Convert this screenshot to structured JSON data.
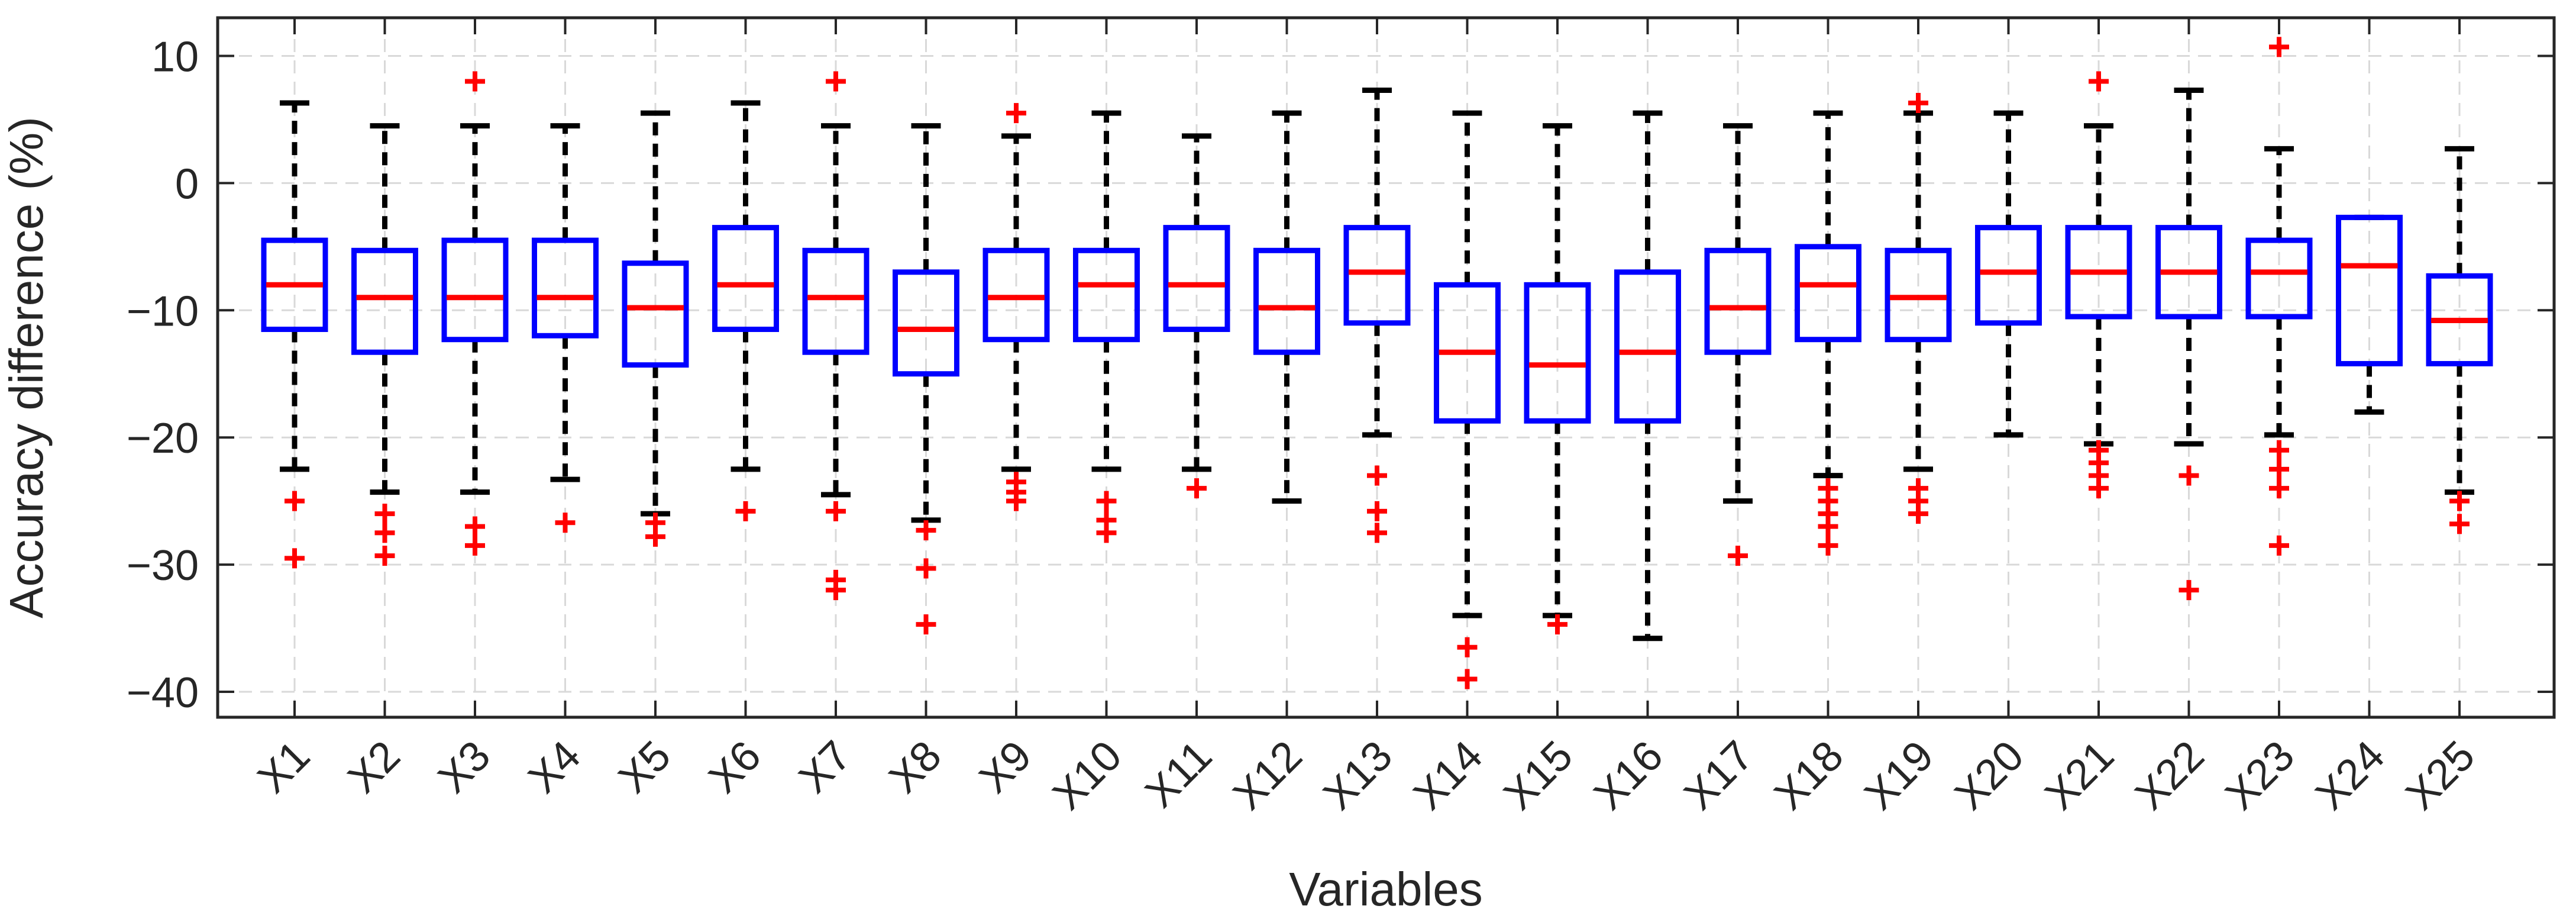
{
  "chart_data": {
    "type": "boxplot",
    "title": "",
    "xlabel": "Variables",
    "ylabel": "Accuracy difference (%)",
    "ylim": [
      -42,
      13
    ],
    "yticks": [
      10,
      0,
      -10,
      -20,
      -30,
      -40
    ],
    "grid": true,
    "colors": {
      "box": "#0000ff",
      "median": "#ff0000",
      "whisker": "#000000",
      "outlier": "#ff0000",
      "grid": "#d9d9d9",
      "axis": "#262626"
    },
    "boxes": [
      {
        "label": "X1",
        "q1": -11.5,
        "median": -8,
        "q3": -4.5,
        "whisker_low": -22.5,
        "whisker_high": 6.3,
        "outliers": [
          -25,
          -29.5
        ]
      },
      {
        "label": "X2",
        "q1": -13.3,
        "median": -9,
        "q3": -5.3,
        "whisker_low": -24.3,
        "whisker_high": 4.5,
        "outliers": [
          -26,
          -27.5,
          -29.3
        ]
      },
      {
        "label": "X3",
        "q1": -12.3,
        "median": -9,
        "q3": -4.5,
        "whisker_low": -24.3,
        "whisker_high": 4.5,
        "outliers": [
          8,
          -27,
          -28.5
        ]
      },
      {
        "label": "X4",
        "q1": -12,
        "median": -9,
        "q3": -4.5,
        "whisker_low": -23.3,
        "whisker_high": 4.5,
        "outliers": [
          -26.7
        ]
      },
      {
        "label": "X5",
        "q1": -14.3,
        "median": -9.8,
        "q3": -6.3,
        "whisker_low": -26,
        "whisker_high": 5.5,
        "outliers": [
          -26.7,
          -27.8
        ]
      },
      {
        "label": "X6",
        "q1": -11.5,
        "median": -8,
        "q3": -3.5,
        "whisker_low": -22.5,
        "whisker_high": 6.3,
        "outliers": [
          -25.8
        ]
      },
      {
        "label": "X7",
        "q1": -13.3,
        "median": -9,
        "q3": -5.3,
        "whisker_low": -24.5,
        "whisker_high": 4.5,
        "outliers": [
          8,
          -25.8,
          -31.2,
          -32
        ]
      },
      {
        "label": "X8",
        "q1": -15,
        "median": -11.5,
        "q3": -7,
        "whisker_low": -26.5,
        "whisker_high": 4.5,
        "outliers": [
          -27.3,
          -30.3,
          -34.7
        ]
      },
      {
        "label": "X9",
        "q1": -12.3,
        "median": -9,
        "q3": -5.3,
        "whisker_low": -22.5,
        "whisker_high": 3.7,
        "outliers": [
          5.5,
          -23.5,
          -24.3,
          -25
        ]
      },
      {
        "label": "X10",
        "q1": -12.3,
        "median": -8,
        "q3": -5.3,
        "whisker_low": -22.5,
        "whisker_high": 5.5,
        "outliers": [
          -25,
          -26.5,
          -27.5
        ]
      },
      {
        "label": "X11",
        "q1": -11.5,
        "median": -8,
        "q3": -3.5,
        "whisker_low": -22.5,
        "whisker_high": 3.7,
        "outliers": [
          -24
        ]
      },
      {
        "label": "X12",
        "q1": -13.3,
        "median": -9.8,
        "q3": -5.3,
        "whisker_low": -25,
        "whisker_high": 5.5,
        "outliers": []
      },
      {
        "label": "X13",
        "q1": -11,
        "median": -7,
        "q3": -3.5,
        "whisker_low": -19.8,
        "whisker_high": 7.3,
        "outliers": [
          -23,
          -25.8,
          -27.5
        ]
      },
      {
        "label": "X14",
        "q1": -18.7,
        "median": -13.3,
        "q3": -8,
        "whisker_low": -34,
        "whisker_high": 5.5,
        "outliers": [
          -36.5,
          -39
        ]
      },
      {
        "label": "X15",
        "q1": -18.7,
        "median": -14.3,
        "q3": -8,
        "whisker_low": -34,
        "whisker_high": 4.5,
        "outliers": [
          -34.7
        ]
      },
      {
        "label": "X16",
        "q1": -18.7,
        "median": -13.3,
        "q3": -7,
        "whisker_low": -35.8,
        "whisker_high": 5.5,
        "outliers": []
      },
      {
        "label": "X17",
        "q1": -13.3,
        "median": -9.8,
        "q3": -5.3,
        "whisker_low": -25,
        "whisker_high": 4.5,
        "outliers": [
          -29.3
        ]
      },
      {
        "label": "X18",
        "q1": -12.3,
        "median": -8,
        "q3": -5,
        "whisker_low": -23,
        "whisker_high": 5.5,
        "outliers": [
          -24,
          -25,
          -26,
          -27,
          -28.5
        ]
      },
      {
        "label": "X19",
        "q1": -12.3,
        "median": -9,
        "q3": -5.3,
        "whisker_low": -22.5,
        "whisker_high": 5.5,
        "outliers": [
          6.3,
          -24,
          -25,
          -26
        ]
      },
      {
        "label": "X20",
        "q1": -11,
        "median": -7,
        "q3": -3.5,
        "whisker_low": -19.8,
        "whisker_high": 5.5,
        "outliers": []
      },
      {
        "label": "X21",
        "q1": -10.5,
        "median": -7,
        "q3": -3.5,
        "whisker_low": -20.5,
        "whisker_high": 4.5,
        "outliers": [
          8,
          -21,
          -22,
          -23,
          -24
        ]
      },
      {
        "label": "X22",
        "q1": -10.5,
        "median": -7,
        "q3": -3.5,
        "whisker_low": -20.5,
        "whisker_high": 7.3,
        "outliers": [
          -23,
          -32
        ]
      },
      {
        "label": "X23",
        "q1": -10.5,
        "median": -7,
        "q3": -4.5,
        "whisker_low": -19.8,
        "whisker_high": 2.7,
        "outliers": [
          10.7,
          -21,
          -22.5,
          -24,
          -28.5
        ]
      },
      {
        "label": "X24",
        "q1": -14.2,
        "median": -6.5,
        "q3": -2.7,
        "whisker_low": -18,
        "whisker_high": -2.7,
        "outliers": []
      },
      {
        "label": "X25",
        "q1": -14.2,
        "median": -10.8,
        "q3": -7.3,
        "whisker_low": -24.3,
        "whisker_high": 2.7,
        "outliers": [
          -25,
          -26.8
        ]
      }
    ]
  }
}
